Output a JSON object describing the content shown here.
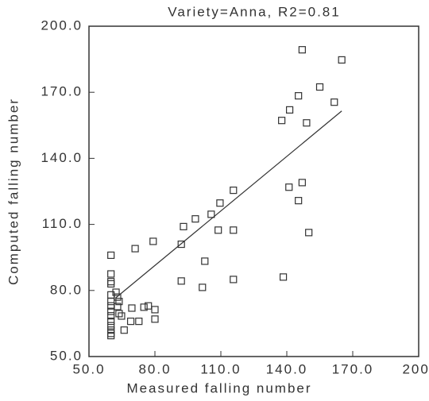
{
  "chart_data": {
    "type": "scatter",
    "title": "Variety=Anna, R2=0.81",
    "x_label": "Measured falling number",
    "y_label": "Computed falling number",
    "xlim": [
      50,
      200
    ],
    "ylim": [
      50,
      200
    ],
    "xticks": [
      {
        "value": 50,
        "label": "50.0"
      },
      {
        "value": 80,
        "label": "80.0"
      },
      {
        "value": 110,
        "label": "110.0"
      },
      {
        "value": 140,
        "label": "140.0"
      },
      {
        "value": 170,
        "label": "170.0"
      },
      {
        "value": 200,
        "label": "200."
      }
    ],
    "yticks": [
      {
        "value": 50,
        "label": "50.0"
      },
      {
        "value": 80,
        "label": "80.0"
      },
      {
        "value": 110,
        "label": "110.0"
      },
      {
        "value": 140,
        "label": "140.0"
      },
      {
        "value": 170,
        "label": "170.0"
      },
      {
        "value": 200,
        "label": "200.0"
      }
    ],
    "color": "#333333",
    "series": [
      {
        "mode": "markers",
        "x": [
          60,
          60,
          60,
          60,
          60,
          60,
          60,
          60,
          60,
          60,
          60,
          60,
          60,
          60,
          62.3,
          63,
          63.7,
          63,
          63.7,
          64.8,
          66,
          69.5,
          69,
          72.7,
          71,
          75,
          77,
          80,
          80,
          79.2,
          92,
          93,
          92,
          98.4,
          102.7,
          101.6,
          105.6,
          109.6,
          108.8,
          115.7,
          115.7,
          115.7,
          138.4,
          137.7,
          141.3,
          141,
          145.3,
          145.3,
          147,
          147,
          149,
          150,
          155,
          161.6,
          165
        ],
        "values": [
          96,
          87.5,
          84,
          83,
          78,
          75,
          73,
          70.5,
          68.5,
          66,
          64,
          62,
          60.5,
          59.5,
          79.2,
          77,
          75,
          72.7,
          69.5,
          68.4,
          62,
          72,
          66,
          66,
          99,
          72.4,
          73,
          71.3,
          67,
          102.3,
          101,
          109,
          84.3,
          112.5,
          93.3,
          81.4,
          114.6,
          119.7,
          107.4,
          125.5,
          107.4,
          85,
          86.1,
          157.2,
          162,
          126.9,
          168.4,
          120.8,
          129,
          189.3,
          156.1,
          106.3,
          172.4,
          165.5,
          184.7
        ]
      },
      {
        "mode": "lines",
        "x": [
          62,
          165
        ],
        "values": [
          76.5,
          161.5
        ]
      }
    ]
  }
}
